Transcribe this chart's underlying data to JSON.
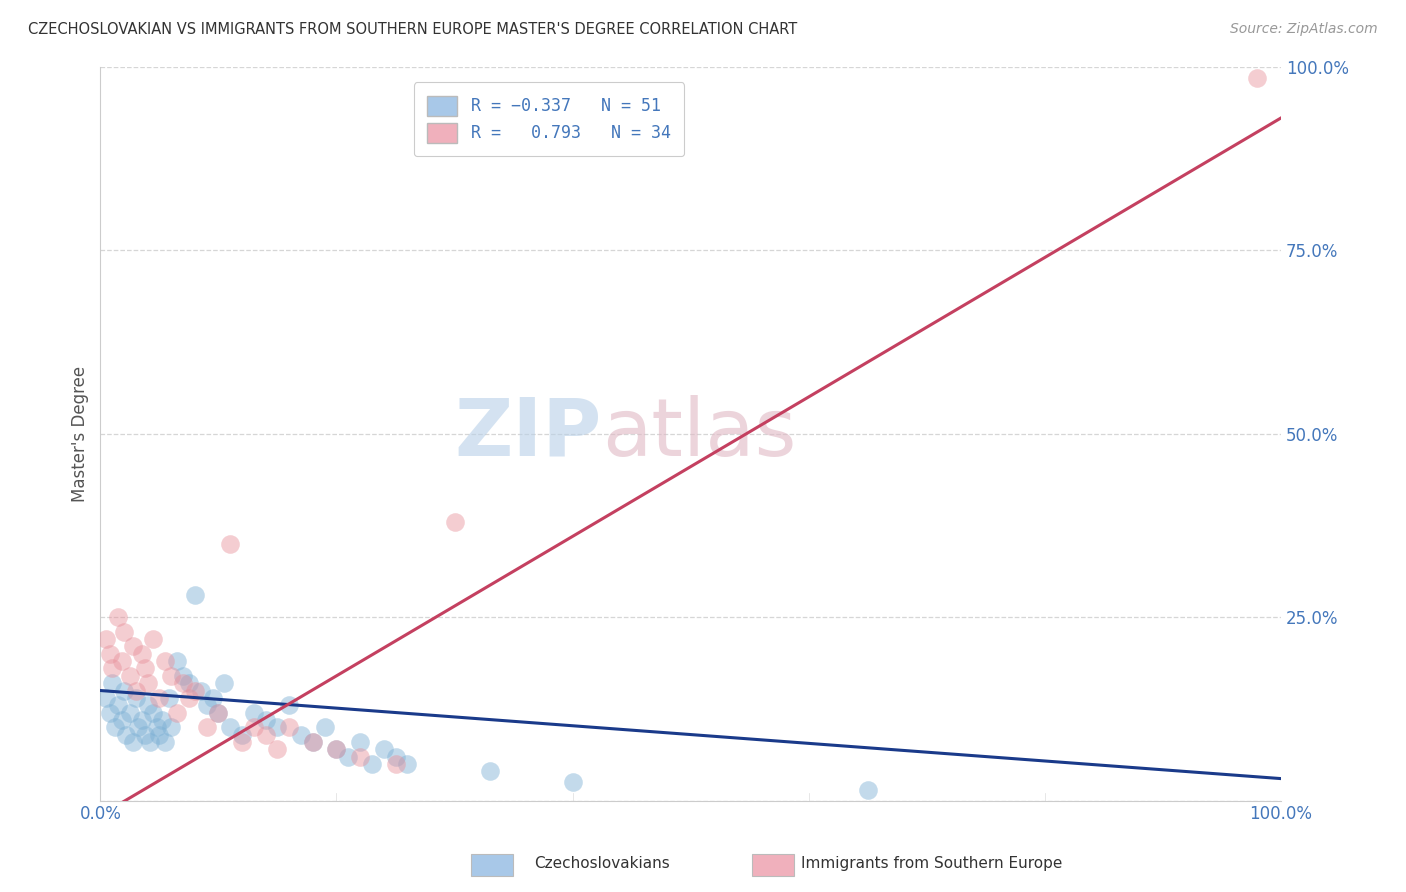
{
  "title": "CZECHOSLOVAKIAN VS IMMIGRANTS FROM SOUTHERN EUROPE MASTER'S DEGREE CORRELATION CHART",
  "source": "Source: ZipAtlas.com",
  "ylabel": "Master's Degree",
  "legend_label_1": "Czechoslovakians",
  "legend_label_2": "Immigrants from Southern Europe",
  "blue_scatter_color": "#7bafd4",
  "pink_scatter_color": "#e8909a",
  "trend_blue": "#1a3a8a",
  "trend_pink": "#c44060",
  "legend_blue_patch": "#a8c8e8",
  "legend_pink_patch": "#f0b0bc",
  "bg_color": "#ffffff",
  "grid_color": "#cccccc",
  "axis_label_color": "#4477bb",
  "title_color": "#333333",
  "watermark_zip_color": "#b8d0e8",
  "watermark_atlas_color": "#e0b8c4",
  "blue_scatter_x": [
    0.5,
    0.8,
    1.0,
    1.2,
    1.5,
    1.8,
    2.0,
    2.2,
    2.5,
    2.8,
    3.0,
    3.2,
    3.5,
    3.8,
    4.0,
    4.2,
    4.5,
    4.8,
    5.0,
    5.2,
    5.5,
    5.8,
    6.0,
    6.5,
    7.0,
    7.5,
    8.0,
    8.5,
    9.0,
    9.5,
    10.0,
    10.5,
    11.0,
    12.0,
    13.0,
    14.0,
    15.0,
    16.0,
    17.0,
    18.0,
    19.0,
    20.0,
    21.0,
    22.0,
    23.0,
    24.0,
    25.0,
    26.0,
    33.0,
    40.0,
    65.0
  ],
  "blue_scatter_y": [
    14.0,
    12.0,
    16.0,
    10.0,
    13.0,
    11.0,
    15.0,
    9.0,
    12.0,
    8.0,
    14.0,
    10.0,
    11.0,
    9.0,
    13.0,
    8.0,
    12.0,
    10.0,
    9.0,
    11.0,
    8.0,
    14.0,
    10.0,
    19.0,
    17.0,
    16.0,
    28.0,
    15.0,
    13.0,
    14.0,
    12.0,
    16.0,
    10.0,
    9.0,
    12.0,
    11.0,
    10.0,
    13.0,
    9.0,
    8.0,
    10.0,
    7.0,
    6.0,
    8.0,
    5.0,
    7.0,
    6.0,
    5.0,
    4.0,
    2.5,
    1.5
  ],
  "pink_scatter_x": [
    0.5,
    0.8,
    1.0,
    1.5,
    1.8,
    2.0,
    2.5,
    2.8,
    3.0,
    3.5,
    3.8,
    4.0,
    4.5,
    5.0,
    5.5,
    6.0,
    6.5,
    7.0,
    7.5,
    8.0,
    9.0,
    10.0,
    11.0,
    12.0,
    13.0,
    14.0,
    15.0,
    16.0,
    18.0,
    20.0,
    22.0,
    25.0,
    30.0,
    98.0
  ],
  "pink_scatter_y": [
    22.0,
    20.0,
    18.0,
    25.0,
    19.0,
    23.0,
    17.0,
    21.0,
    15.0,
    20.0,
    18.0,
    16.0,
    22.0,
    14.0,
    19.0,
    17.0,
    12.0,
    16.0,
    14.0,
    15.0,
    10.0,
    12.0,
    35.0,
    8.0,
    10.0,
    9.0,
    7.0,
    10.0,
    8.0,
    7.0,
    6.0,
    5.0,
    38.0,
    98.5
  ],
  "blue_trend_x": [
    0,
    100
  ],
  "blue_trend_y": [
    15.0,
    3.0
  ],
  "pink_trend_x": [
    0,
    100
  ],
  "pink_trend_y": [
    -2.0,
    93.0
  ],
  "xlim": [
    0,
    100
  ],
  "ylim": [
    0,
    100
  ],
  "xtick_positions": [
    0,
    20,
    40,
    60,
    80,
    100
  ],
  "ytick_positions": [
    0,
    25,
    50,
    75,
    100
  ],
  "xtick_show": [
    "0.0%",
    "",
    "",
    "",
    "",
    "100.0%"
  ],
  "ytick_show": [
    "",
    "25.0%",
    "50.0%",
    "75.0%",
    "100.0%"
  ]
}
